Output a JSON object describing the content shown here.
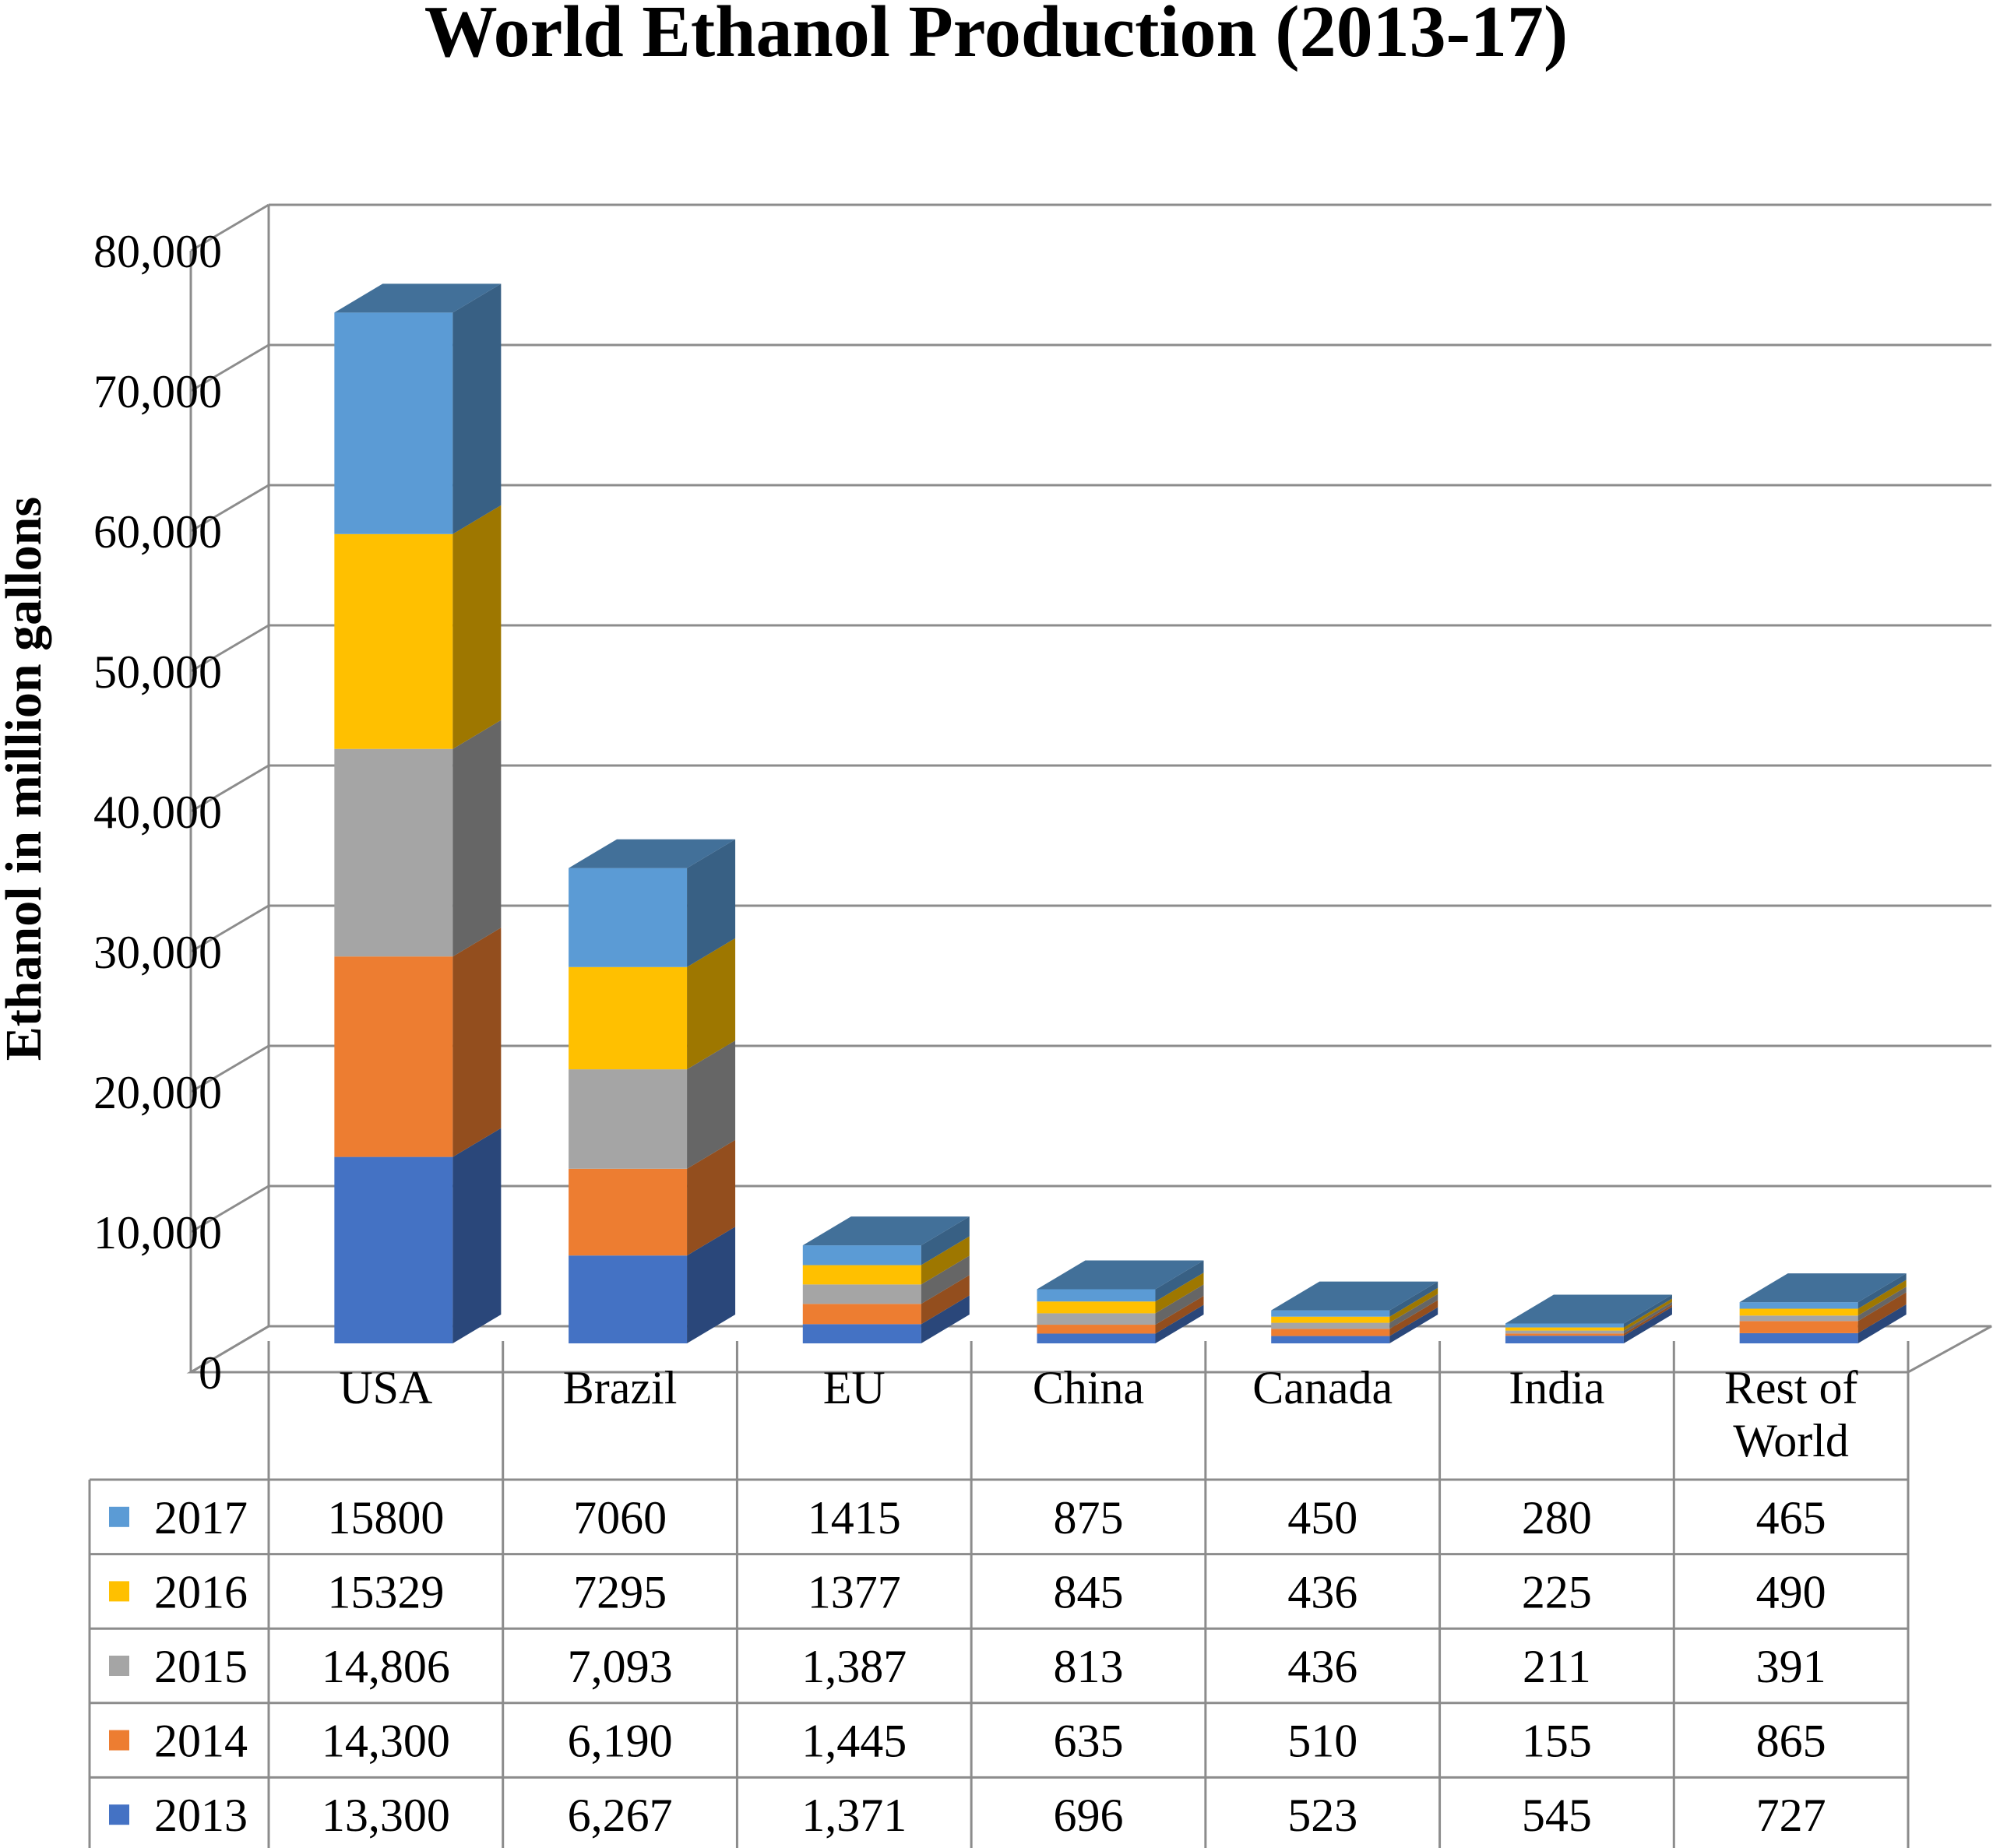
{
  "chart_data": {
    "type": "bar",
    "stacked": true,
    "three_d": true,
    "title": "World Ethanol Production (2013-17)",
    "xlabel": "",
    "ylabel": "Ethanol in million gallons",
    "ylim": [
      0,
      80000
    ],
    "yticks": [
      "0",
      "10,000",
      "20,000",
      "30,000",
      "40,000",
      "50,000",
      "60,000",
      "70,000",
      "80,000"
    ],
    "grid": true,
    "legend": "data-table-left",
    "categories": [
      "USA",
      "Brazil",
      "EU",
      "China",
      "Canada",
      "India",
      "Rest of World"
    ],
    "series": [
      {
        "name": "2013",
        "color": "#4472C4",
        "values": [
          13300,
          6267,
          1371,
          696,
          523,
          545,
          727
        ],
        "labels": [
          "13,300",
          "6,267",
          "1,371",
          "696",
          "523",
          "545",
          "727"
        ]
      },
      {
        "name": "2014",
        "color": "#ED7D31",
        "values": [
          14300,
          6190,
          1445,
          635,
          510,
          155,
          865
        ],
        "labels": [
          "14,300",
          "6,190",
          "1,445",
          "635",
          "510",
          "155",
          "865"
        ]
      },
      {
        "name": "2015",
        "color": "#A5A5A5",
        "values": [
          14806,
          7093,
          1387,
          813,
          436,
          211,
          391
        ],
        "labels": [
          "14,806",
          "7,093",
          "1,387",
          "813",
          "436",
          "211",
          "391"
        ]
      },
      {
        "name": "2016",
        "color": "#FFC000",
        "values": [
          15329,
          7295,
          1377,
          845,
          436,
          225,
          490
        ],
        "labels": [
          "15329",
          "7295",
          "1377",
          "845",
          "436",
          "225",
          "490"
        ]
      },
      {
        "name": "2017",
        "color": "#5B9BD5",
        "values": [
          15800,
          7060,
          1415,
          875,
          450,
          280,
          465
        ],
        "labels": [
          "15800",
          "7060",
          "1415",
          "875",
          "450",
          "280",
          "465"
        ]
      }
    ],
    "table_row_order": [
      "2017",
      "2016",
      "2015",
      "2014",
      "2013"
    ]
  }
}
